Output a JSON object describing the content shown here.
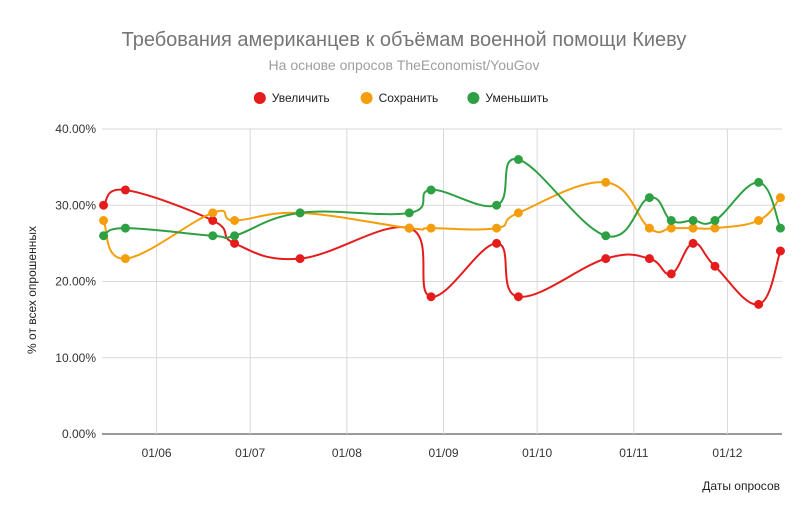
{
  "chart_data": {
    "type": "line",
    "title": "Требования американцев к объёмам военной помощи Киеву",
    "subtitle": "На основе опросов TheEconomist/YouGov",
    "xlabel": "Даты опросов",
    "ylabel": "% от всех опрошенных",
    "ylim": [
      0,
      40
    ],
    "y_ticks": [
      "0.00%",
      "10.00%",
      "20.00%",
      "30.00%",
      "40.00%"
    ],
    "x_ticks": [
      "01/06",
      "01/07",
      "01/08",
      "01/09",
      "01/10",
      "01/11",
      "01/12"
    ],
    "x_tick_days": [
      0,
      30,
      61,
      92,
      122,
      153,
      183
    ],
    "x_range_days": [
      -17.5,
      200.5
    ],
    "grid": true,
    "legend_position": "top",
    "dates": [
      "2022-05-15",
      "2022-05-22",
      "2022-06-19",
      "2022-06-26",
      "2022-07-17",
      "2022-08-21",
      "2022-08-28",
      "2022-09-18",
      "2022-09-25",
      "2022-10-23",
      "2022-11-06",
      "2022-11-13",
      "2022-11-20",
      "2022-11-27",
      "2022-12-11",
      "2022-12-18"
    ],
    "x_days": [
      -17,
      -10,
      18,
      25,
      46,
      81,
      88,
      109,
      116,
      144,
      158,
      165,
      172,
      179,
      193,
      200
    ],
    "series": [
      {
        "name": "Увеличить",
        "color": "#e51c1c",
        "values": [
          30,
          32,
          28,
          25,
          23,
          27,
          18,
          25,
          18,
          23,
          23,
          21,
          25,
          22,
          17,
          24
        ]
      },
      {
        "name": "Сохранить",
        "color": "#f59e0b",
        "values": [
          28,
          23,
          29,
          28,
          29,
          27,
          27,
          27,
          29,
          33,
          27,
          27,
          27,
          27,
          28,
          31
        ]
      },
      {
        "name": "Уменьшить",
        "color": "#2ea043",
        "values": [
          26,
          27,
          26,
          26,
          29,
          29,
          32,
          30,
          36,
          26,
          31,
          28,
          28,
          28,
          33,
          27
        ]
      }
    ]
  }
}
